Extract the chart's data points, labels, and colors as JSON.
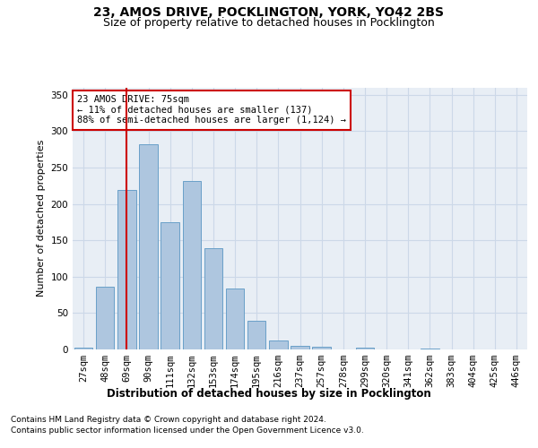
{
  "title": "23, AMOS DRIVE, POCKLINGTON, YORK, YO42 2BS",
  "subtitle": "Size of property relative to detached houses in Pocklington",
  "xlabel": "Distribution of detached houses by size in Pocklington",
  "ylabel": "Number of detached properties",
  "categories": [
    "27sqm",
    "48sqm",
    "69sqm",
    "90sqm",
    "111sqm",
    "132sqm",
    "153sqm",
    "174sqm",
    "195sqm",
    "216sqm",
    "237sqm",
    "257sqm",
    "278sqm",
    "299sqm",
    "320sqm",
    "341sqm",
    "362sqm",
    "383sqm",
    "404sqm",
    "425sqm",
    "446sqm"
  ],
  "values": [
    2,
    86,
    219,
    282,
    175,
    231,
    139,
    84,
    40,
    12,
    5,
    4,
    0,
    3,
    0,
    0,
    1,
    0,
    0,
    0,
    0
  ],
  "bar_color": "#aec6df",
  "bar_edge_color": "#6aa0c8",
  "vline_color": "#cc0000",
  "annotation_text": "23 AMOS DRIVE: 75sqm\n← 11% of detached houses are smaller (137)\n88% of semi-detached houses are larger (1,124) →",
  "annotation_box_color": "#ffffff",
  "annotation_box_edge": "#cc0000",
  "ylim": [
    0,
    360
  ],
  "yticks": [
    0,
    50,
    100,
    150,
    200,
    250,
    300,
    350
  ],
  "grid_color": "#ccd8e8",
  "background_color": "#e8eef5",
  "footer_line1": "Contains HM Land Registry data © Crown copyright and database right 2024.",
  "footer_line2": "Contains public sector information licensed under the Open Government Licence v3.0.",
  "title_fontsize": 10,
  "subtitle_fontsize": 9,
  "xlabel_fontsize": 8.5,
  "ylabel_fontsize": 8,
  "tick_fontsize": 7.5,
  "footer_fontsize": 6.5,
  "vline_bar_index": 2
}
